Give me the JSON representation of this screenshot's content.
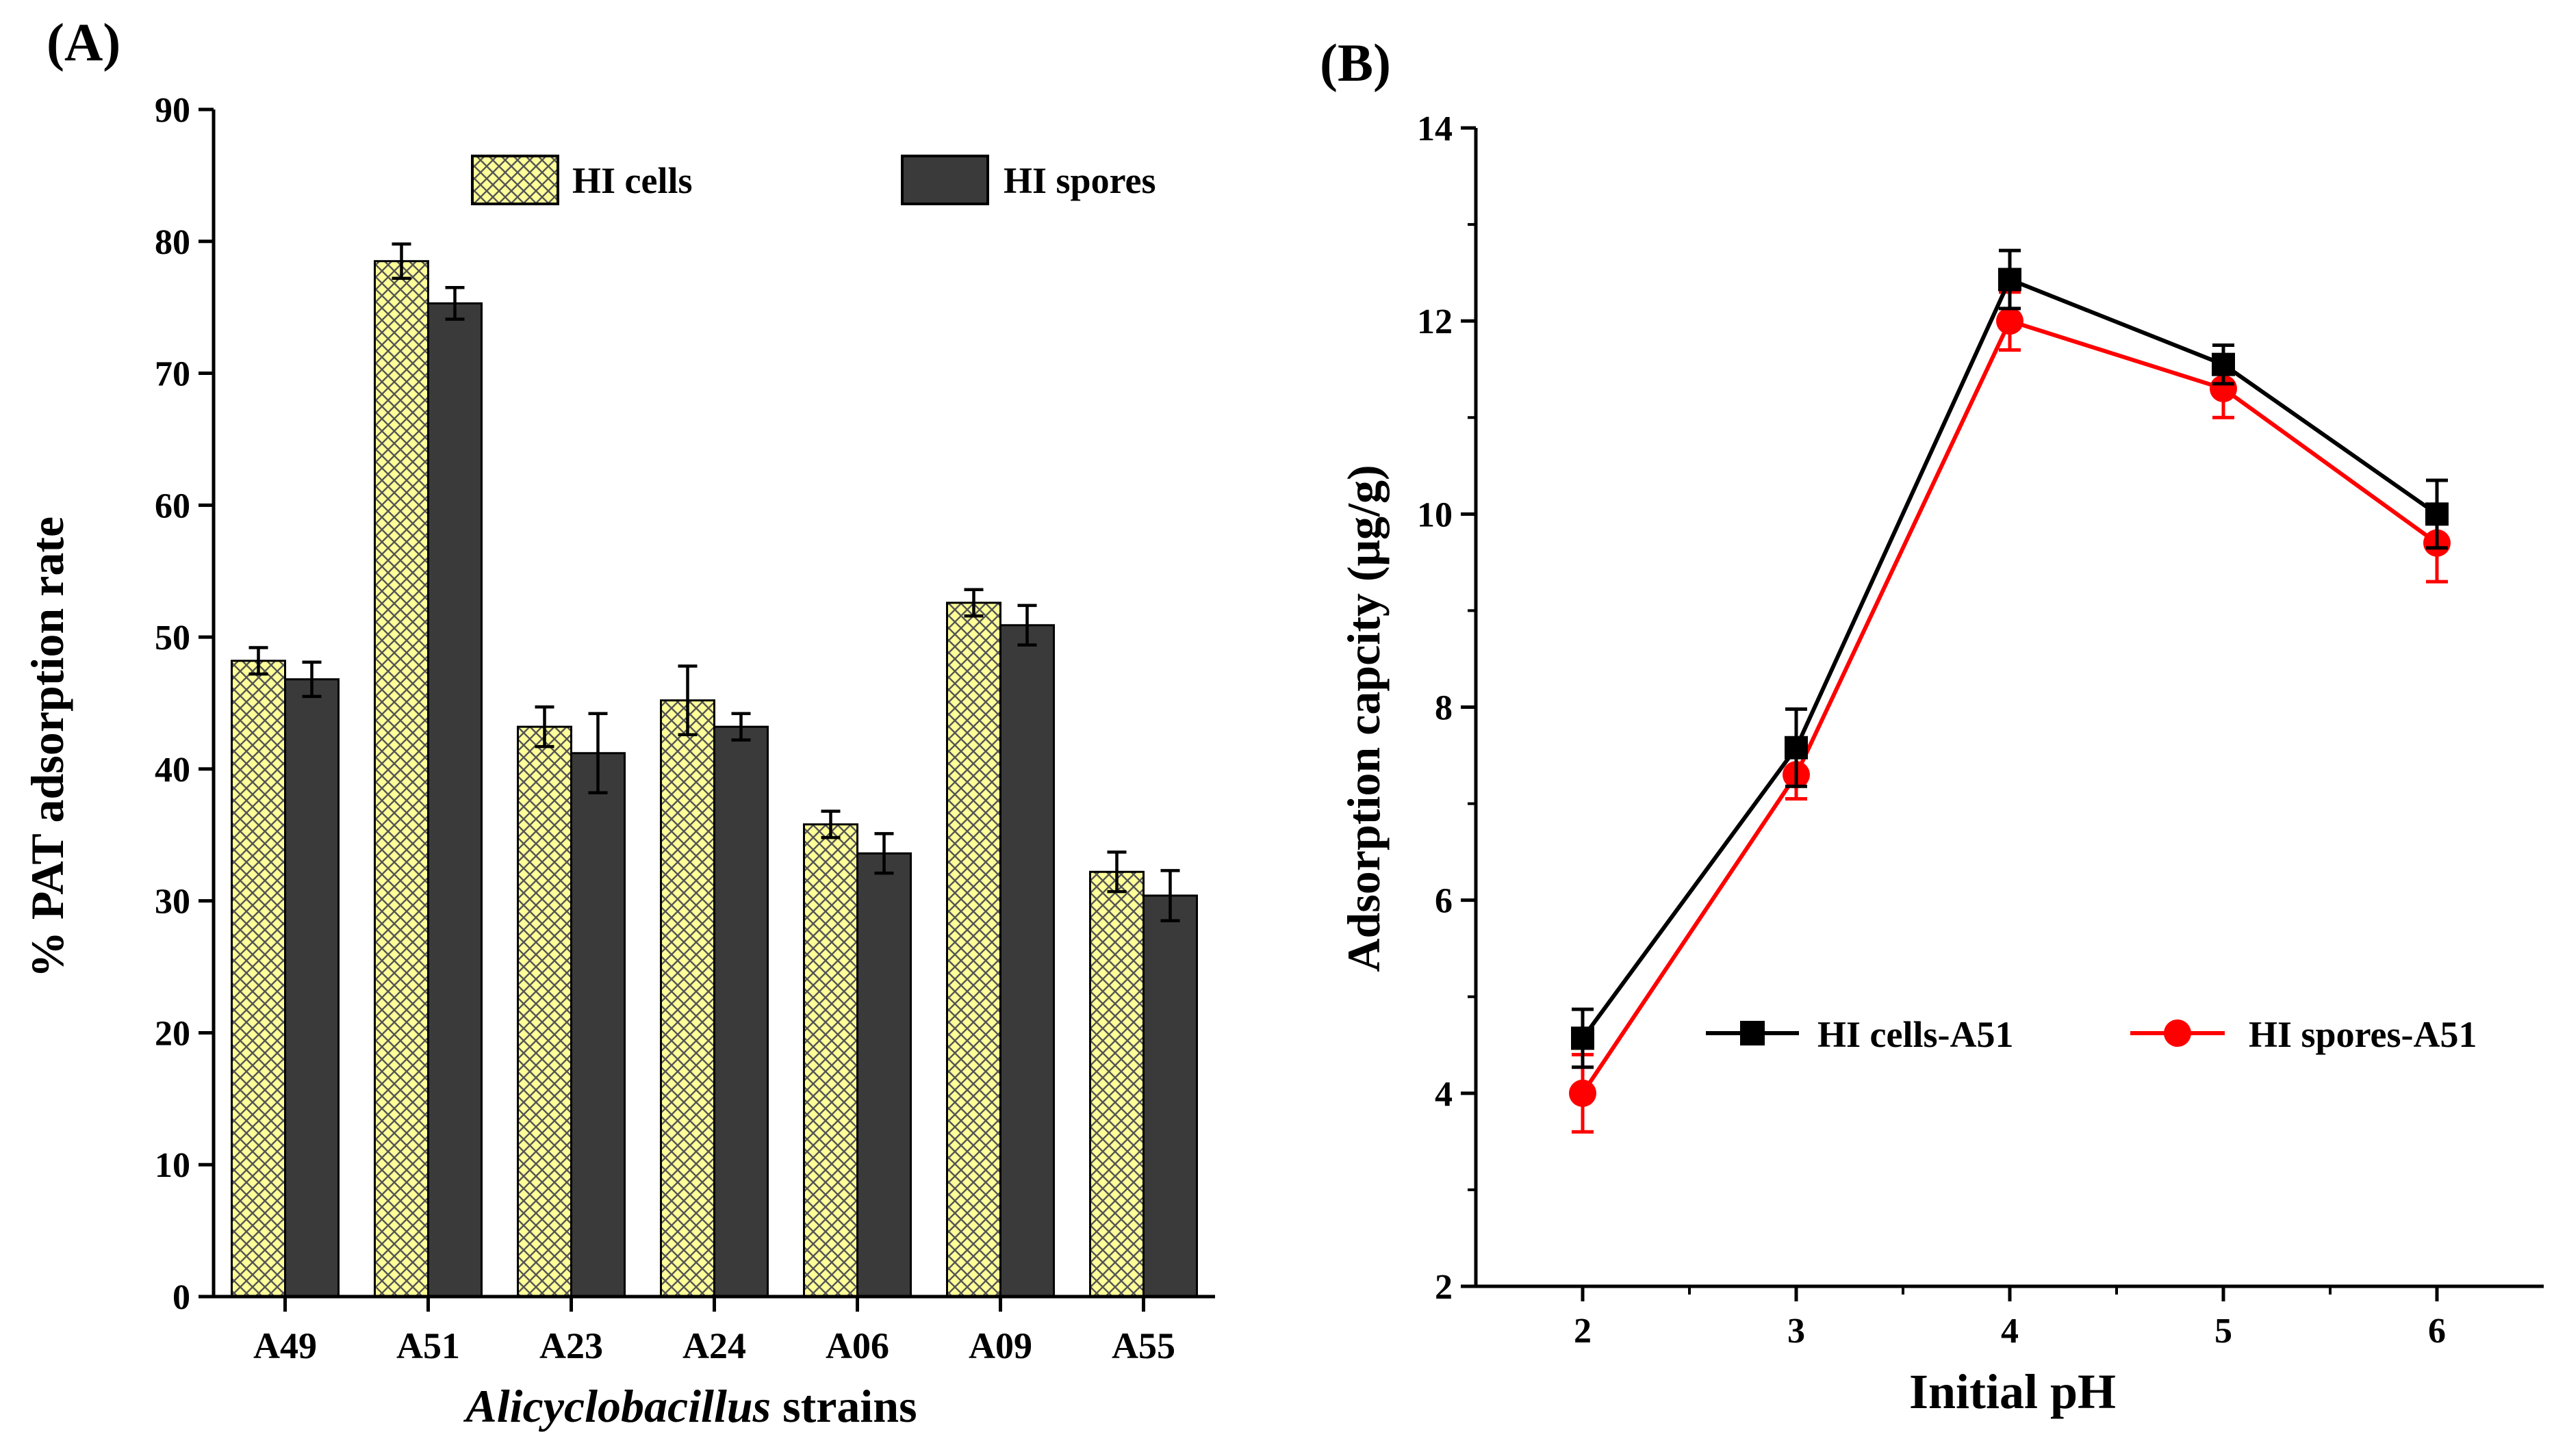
{
  "chart_data": [
    {
      "type": "bar",
      "panel_label": "(A)",
      "title": "",
      "xlabel_italic": "Alicyclobacillus",
      "xlabel_rest": " strains",
      "ylabel": "%  PAT adsorption rate",
      "ylim": [
        0,
        90
      ],
      "yticks": [
        0,
        10,
        20,
        30,
        40,
        50,
        60,
        70,
        80,
        90
      ],
      "categories": [
        "A49",
        "A51",
        "A23",
        "A24",
        "A06",
        "A09",
        "A55"
      ],
      "series": [
        {
          "name": "HI cells",
          "color": "#ffff99",
          "pattern": "crosshatch",
          "values": [
            48.2,
            78.5,
            43.2,
            45.2,
            35.8,
            52.6,
            32.2
          ],
          "errors": [
            1.0,
            1.3,
            1.5,
            2.6,
            1.0,
            1.0,
            1.5
          ]
        },
        {
          "name": "HI spores",
          "color": "#3a3a3a",
          "pattern": "solid",
          "values": [
            46.8,
            75.3,
            41.2,
            43.2,
            33.6,
            50.9,
            30.4
          ],
          "errors": [
            1.3,
            1.2,
            3.0,
            1.0,
            1.5,
            1.5,
            1.9
          ]
        }
      ],
      "legend": "top"
    },
    {
      "type": "line",
      "panel_label": "(B)",
      "title": "",
      "xlabel": "Initial pH",
      "ylabel": "Adsorption capcity (μg/g)",
      "x": [
        2,
        3,
        4,
        5,
        6
      ],
      "xlim": [
        1.5,
        6.5
      ],
      "xticks": [
        2,
        3,
        4,
        5,
        6
      ],
      "ylim": [
        2,
        14
      ],
      "yticks": [
        2,
        4,
        6,
        8,
        10,
        12,
        14
      ],
      "series": [
        {
          "name": "HI cells-A51",
          "color": "#000000",
          "marker": "square",
          "values": [
            4.57,
            7.58,
            12.43,
            11.55,
            10.0
          ],
          "errors": [
            0.3,
            0.4,
            0.3,
            0.2,
            0.35
          ]
        },
        {
          "name": "HI spores-A51",
          "color": "#ff0000",
          "marker": "circle",
          "values": [
            4.0,
            7.3,
            12.0,
            11.3,
            9.7
          ],
          "errors": [
            0.4,
            0.25,
            0.3,
            0.3,
            0.4
          ]
        }
      ],
      "legend": "lower-middle"
    }
  ]
}
